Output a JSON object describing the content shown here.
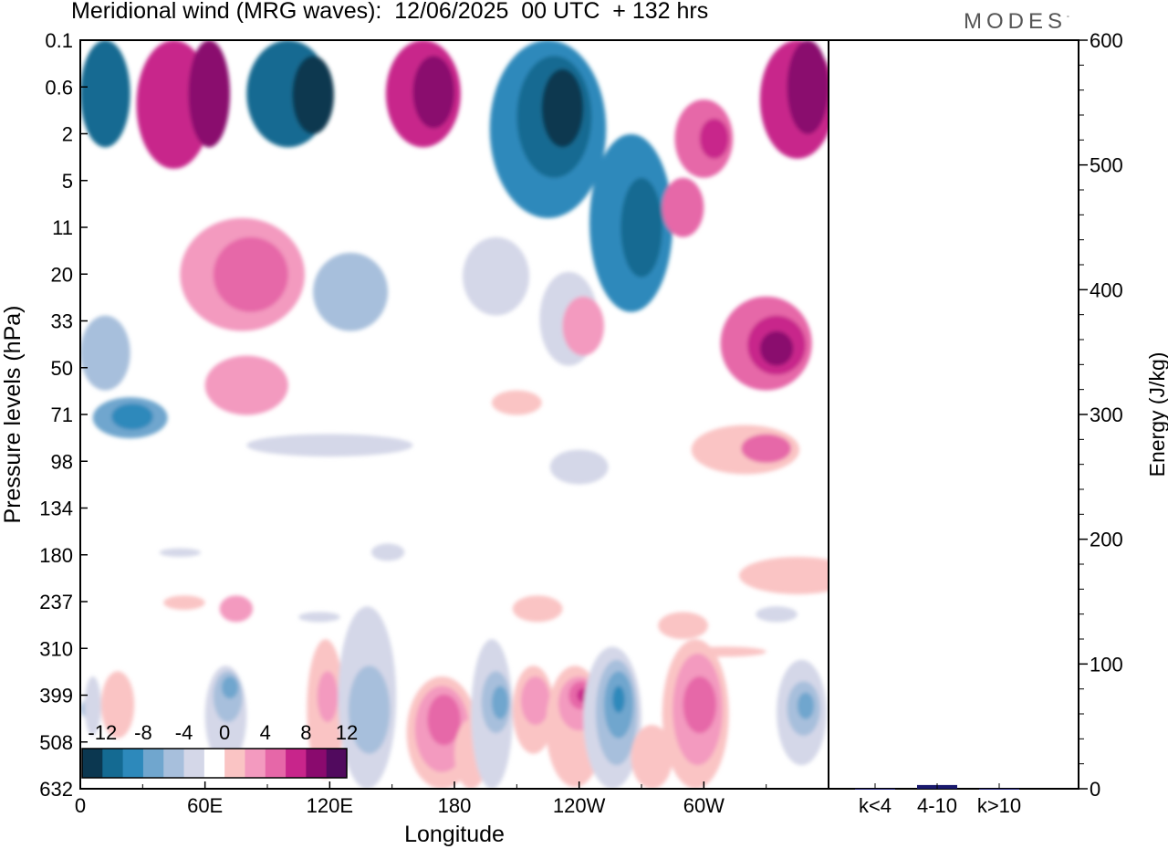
{
  "header": {
    "title": "Meridional wind (MRG waves):  12/06/2025  00 UTC  + 132 hrs",
    "brand": "MODES",
    "brand_mark": "°"
  },
  "colors": {
    "levels": [
      "#0b3750",
      "#146a92",
      "#2d89bb",
      "#70a6ce",
      "#a7bfdc",
      "#d4d7e8",
      "#ffffff",
      "#fac4c4",
      "#f39abf",
      "#e667a8",
      "#c8258b",
      "#8a0a6e",
      "#510a5e"
    ]
  },
  "chart_data": [
    {
      "type": "heatmap",
      "title": "Meridional wind (MRG waves):  12/06/2025  00 UTC  + 132 hrs",
      "xlabel": "Longitude",
      "ylabel": "Pressure levels (hPa)",
      "x_ticks": [
        "0",
        "60E",
        "120E",
        "180",
        "120W",
        "60W"
      ],
      "y_ticks": [
        "0.1",
        "0.6",
        "2",
        "5",
        "11",
        "20",
        "33",
        "50",
        "71",
        "98",
        "134",
        "180",
        "237",
        "310",
        "399",
        "508",
        "632"
      ],
      "colorbar": {
        "tick_labels": [
          "-12",
          "-8",
          "-4",
          "0",
          "4",
          "8",
          "12"
        ]
      }
    },
    {
      "type": "bar",
      "ylabel": "Energy (J/kg)",
      "ylim": [
        0,
        600
      ],
      "y_ticks": [
        "0",
        "100",
        "200",
        "300",
        "400",
        "500",
        "600"
      ],
      "categories": [
        "k<4",
        "4-10",
        "k>10"
      ],
      "values": [
        0,
        3,
        0
      ]
    }
  ]
}
